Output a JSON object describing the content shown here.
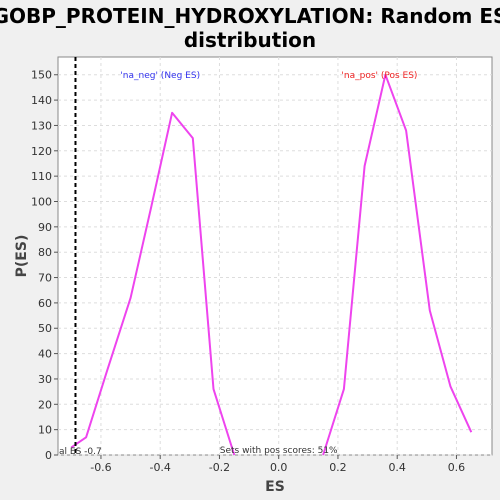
{
  "chart_data": {
    "type": "line",
    "title_line1": "GOBP_PROTEIN_HYDROXYLATION: Random ES",
    "title_line2": "distribution",
    "xlabel": "ES",
    "ylabel": "P(ES)",
    "xlim": [
      -0.745,
      0.72
    ],
    "ylim": [
      0,
      157
    ],
    "x_ticks": [
      -0.6,
      -0.4,
      -0.2,
      0.0,
      0.2,
      0.4,
      0.6
    ],
    "x_tick_labels": [
      "-0.6",
      "-0.4",
      "-0.2",
      "0.0",
      "0.2",
      "0.4",
      "0.6"
    ],
    "y_ticks": [
      0,
      10,
      20,
      30,
      40,
      50,
      60,
      70,
      80,
      90,
      100,
      110,
      120,
      130,
      140,
      150
    ],
    "grid": true,
    "series": [
      {
        "name": "na_neg",
        "color": "#ee44ee",
        "x": [
          -0.7,
          -0.65,
          -0.58,
          -0.5,
          -0.43,
          -0.36,
          -0.29,
          -0.22,
          -0.15
        ],
        "y": [
          3,
          7,
          33,
          62,
          98,
          135,
          125,
          26,
          0
        ]
      },
      {
        "name": "na_pos",
        "color": "#ee44ee",
        "x": [
          0.15,
          0.22,
          0.29,
          0.36,
          0.43,
          0.51,
          0.58,
          0.65
        ],
        "y": [
          0,
          26,
          114,
          150,
          128,
          57,
          27,
          9
        ]
      }
    ],
    "annotations": {
      "neg_label": "'na_neg' (Neg ES)",
      "neg_color": "#3333ee",
      "neg_x": -0.4,
      "pos_label": "'na_pos' (Pos ES)",
      "pos_color": "#ee2222",
      "pos_x": 0.34,
      "label_y": 148,
      "actual_es_label": "al ES -0.7",
      "actual_es_x": -0.74,
      "pos_scores_label": "Sets with pos scores: 51%"
    }
  }
}
